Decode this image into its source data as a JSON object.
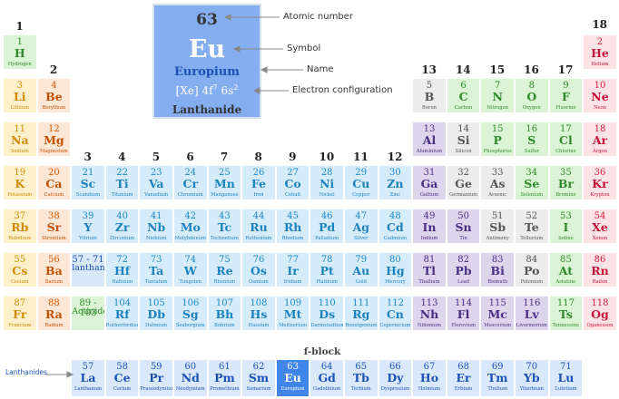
{
  "groups": [
    "1",
    "2",
    "3",
    "4",
    "5",
    "6",
    "7",
    "8",
    "9",
    "10",
    "11",
    "12",
    "13",
    "14",
    "15",
    "16",
    "17",
    "18"
  ],
  "legend": {
    "atomic_number": "63",
    "symbol": "Eu",
    "name": "Europium",
    "config_prefix": "[Xe] 4f",
    "config_sup1": "7",
    "config_mid": " 6s",
    "config_sup2": "2",
    "category": "Lanthanide",
    "callouts": [
      "Atomic number",
      "Symbol",
      "Name",
      "Electron configuration"
    ]
  },
  "fblock_title": "f-block",
  "lanthanides_label": "Lanthanides",
  "colors": {
    "alkali": {
      "bg": "#fff0cc",
      "num": "#c98b00",
      "sym": "#d28a00",
      "name": "#c98b00"
    },
    "alkaline": {
      "bg": "#fce7d6",
      "num": "#d55b00",
      "sym": "#c45000",
      "name": "#c45000"
    },
    "transition": {
      "bg": "#d7ecfb",
      "num": "#1988c4",
      "sym": "#1b82c0",
      "name": "#1b82c0"
    },
    "post": {
      "bg": "#ddd5ec",
      "num": "#4b2d86",
      "sym": "#4b2d86",
      "name": "#4b2d86"
    },
    "metalloid": {
      "bg": "#ececec",
      "num": "#555555",
      "sym": "#555555",
      "name": "#555555"
    },
    "nonmetal": {
      "bg": "#dbf4d5",
      "num": "#2f8a2a",
      "sym": "#2f8a2a",
      "name": "#2f8a2a"
    },
    "noble": {
      "bg": "#fde2e6",
      "num": "#d0223f",
      "sym": "#c4163a",
      "name": "#c4163a"
    },
    "lanthanide": {
      "bg": "#d9e8fb",
      "num": "#1a52b5",
      "sym": "#1a52b5",
      "name": "#1a52b5"
    },
    "highlight": {
      "bg": "#3f86e8",
      "num": "#ffffff",
      "sym": "#ffffff",
      "name": "#ffffff"
    }
  },
  "elements": [
    [
      "1",
      "H",
      "Hydrogen",
      1,
      1,
      "nonmetal"
    ],
    [
      "2",
      "He",
      "Helium",
      18,
      1,
      "noble"
    ],
    [
      "3",
      "Li",
      "Lithium",
      1,
      2,
      "alkali"
    ],
    [
      "4",
      "Be",
      "Beryllium",
      2,
      2,
      "alkaline"
    ],
    [
      "5",
      "B",
      "Boron",
      13,
      2,
      "metalloid"
    ],
    [
      "6",
      "C",
      "Carbon",
      14,
      2,
      "nonmetal"
    ],
    [
      "7",
      "N",
      "Nitrogen",
      15,
      2,
      "nonmetal"
    ],
    [
      "8",
      "O",
      "Oxygen",
      16,
      2,
      "nonmetal"
    ],
    [
      "9",
      "F",
      "Fluorine",
      17,
      2,
      "nonmetal"
    ],
    [
      "10",
      "Ne",
      "Neon",
      18,
      2,
      "noble"
    ],
    [
      "11",
      "Na",
      "Sodium",
      1,
      3,
      "alkali"
    ],
    [
      "12",
      "Mg",
      "Magnesium",
      2,
      3,
      "alkaline"
    ],
    [
      "13",
      "Al",
      "Aluminium",
      13,
      3,
      "post"
    ],
    [
      "14",
      "Si",
      "Silicon",
      14,
      3,
      "metalloid"
    ],
    [
      "15",
      "P",
      "Phosphorus",
      15,
      3,
      "nonmetal"
    ],
    [
      "16",
      "S",
      "Sulfur",
      16,
      3,
      "nonmetal"
    ],
    [
      "17",
      "Cl",
      "Chlorine",
      17,
      3,
      "nonmetal"
    ],
    [
      "18",
      "Ar",
      "Argon",
      18,
      3,
      "noble"
    ],
    [
      "19",
      "K",
      "Potassium",
      1,
      4,
      "alkali"
    ],
    [
      "20",
      "Ca",
      "Calcium",
      2,
      4,
      "alkaline"
    ],
    [
      "21",
      "Sc",
      "Scandium",
      3,
      4,
      "transition"
    ],
    [
      "22",
      "Ti",
      "Titanium",
      4,
      4,
      "transition"
    ],
    [
      "23",
      "Va",
      "Vanadium",
      5,
      4,
      "transition"
    ],
    [
      "24",
      "Cr",
      "Chromium",
      6,
      4,
      "transition"
    ],
    [
      "25",
      "Mn",
      "Manganese",
      7,
      4,
      "transition"
    ],
    [
      "26",
      "Fe",
      "Iron",
      8,
      4,
      "transition"
    ],
    [
      "27",
      "Co",
      "Cobalt",
      9,
      4,
      "transition"
    ],
    [
      "28",
      "Ni",
      "Nickel",
      10,
      4,
      "transition"
    ],
    [
      "29",
      "Cu",
      "Copper",
      11,
      4,
      "transition"
    ],
    [
      "30",
      "Zn",
      "Zinc",
      12,
      4,
      "transition"
    ],
    [
      "31",
      "Ga",
      "Gallium",
      13,
      4,
      "post"
    ],
    [
      "32",
      "Ge",
      "Germanium",
      14,
      4,
      "metalloid"
    ],
    [
      "33",
      "As",
      "Arsenic",
      15,
      4,
      "metalloid"
    ],
    [
      "34",
      "Se",
      "Selenium",
      16,
      4,
      "nonmetal"
    ],
    [
      "35",
      "Br",
      "Bromine",
      17,
      4,
      "nonmetal"
    ],
    [
      "36",
      "Kr",
      "Krypton",
      18,
      4,
      "noble"
    ],
    [
      "37",
      "Rb",
      "Rubidium",
      1,
      5,
      "alkali"
    ],
    [
      "38",
      "Sr",
      "Strontium",
      2,
      5,
      "alkaline"
    ],
    [
      "39",
      "Y",
      "Yttrium",
      3,
      5,
      "transition"
    ],
    [
      "40",
      "Zr",
      "Zirconium",
      4,
      5,
      "transition"
    ],
    [
      "41",
      "Nb",
      "Niobium",
      5,
      5,
      "transition"
    ],
    [
      "42",
      "Mo",
      "Molybdenum",
      6,
      5,
      "transition"
    ],
    [
      "43",
      "Tc",
      "Technetium",
      7,
      5,
      "transition"
    ],
    [
      "44",
      "Ru",
      "Ruthenium",
      8,
      5,
      "transition"
    ],
    [
      "45",
      "Rh",
      "Rhodium",
      9,
      5,
      "transition"
    ],
    [
      "46",
      "Pd",
      "Palladium",
      10,
      5,
      "transition"
    ],
    [
      "47",
      "Ag",
      "Silver",
      11,
      5,
      "transition"
    ],
    [
      "48",
      "Cd",
      "Cadmium",
      12,
      5,
      "transition"
    ],
    [
      "49",
      "In",
      "Indium",
      13,
      5,
      "post"
    ],
    [
      "50",
      "Sn",
      "Tin",
      14,
      5,
      "post"
    ],
    [
      "51",
      "Sb",
      "Antimony",
      15,
      5,
      "metalloid"
    ],
    [
      "52",
      "Te",
      "Tellurium",
      16,
      5,
      "metalloid"
    ],
    [
      "53",
      "I",
      "Iodine",
      17,
      5,
      "nonmetal"
    ],
    [
      "54",
      "Xe",
      "Xenon",
      18,
      5,
      "noble"
    ],
    [
      "55",
      "Cs",
      "Cesium",
      1,
      6,
      "alkali"
    ],
    [
      "56",
      "Ba",
      "Barium",
      2,
      6,
      "alkaline"
    ],
    [
      "57 - 71",
      "lanthanides",
      "",
      3,
      6,
      "lanthanide"
    ],
    [
      "72",
      "Hf",
      "Hafnium",
      4,
      6,
      "transition"
    ],
    [
      "73",
      "Ta",
      "Tantalum",
      5,
      6,
      "transition"
    ],
    [
      "74",
      "W",
      "Tungsten",
      6,
      6,
      "transition"
    ],
    [
      "75",
      "Re",
      "Rhenium",
      7,
      6,
      "transition"
    ],
    [
      "76",
      "Os",
      "Osmium",
      8,
      6,
      "transition"
    ],
    [
      "77",
      "Ir",
      "Iridium",
      9,
      6,
      "transition"
    ],
    [
      "78",
      "Pt",
      "Platinum",
      10,
      6,
      "transition"
    ],
    [
      "79",
      "Au",
      "Gold",
      11,
      6,
      "transition"
    ],
    [
      "80",
      "Hg",
      "Mercury",
      12,
      6,
      "transition"
    ],
    [
      "81",
      "Tl",
      "Thallium",
      13,
      6,
      "post"
    ],
    [
      "82",
      "Pb",
      "Lead",
      14,
      6,
      "post"
    ],
    [
      "83",
      "Bi",
      "Bismuth",
      15,
      6,
      "post"
    ],
    [
      "84",
      "Po",
      "Polonium",
      16,
      6,
      "metalloid"
    ],
    [
      "85",
      "At",
      "Astatine",
      17,
      6,
      "nonmetal"
    ],
    [
      "86",
      "Rn",
      "Radon",
      18,
      6,
      "noble"
    ],
    [
      "87",
      "Fr",
      "Francium",
      1,
      7,
      "alkali"
    ],
    [
      "88",
      "Ra",
      "Radium",
      2,
      7,
      "alkaline"
    ],
    [
      "89 - 103",
      "Actinides",
      "",
      3,
      7,
      "nonmetal"
    ],
    [
      "104",
      "Rf",
      "Rutherfordium",
      4,
      7,
      "transition"
    ],
    [
      "105",
      "Db",
      "Dubnium",
      5,
      7,
      "transition"
    ],
    [
      "106",
      "Sg",
      "Seaborgium",
      6,
      7,
      "transition"
    ],
    [
      "107",
      "Bh",
      "Bohrium",
      7,
      7,
      "transition"
    ],
    [
      "108",
      "Hs",
      "Hassium",
      8,
      7,
      "transition"
    ],
    [
      "109",
      "Mt",
      "Meitnerium",
      9,
      7,
      "transition"
    ],
    [
      "110",
      "Ds",
      "Darmstadtium",
      10,
      7,
      "transition"
    ],
    [
      "111",
      "Rg",
      "Roentgenium",
      11,
      7,
      "transition"
    ],
    [
      "112",
      "Cn",
      "Copernicium",
      12,
      7,
      "transition"
    ],
    [
      "113",
      "Nh",
      "Nihonium",
      13,
      7,
      "post"
    ],
    [
      "114",
      "Fl",
      "Flerovium",
      14,
      7,
      "post"
    ],
    [
      "115",
      "Mc",
      "Moscovium",
      15,
      7,
      "post"
    ],
    [
      "116",
      "Lv",
      "Livermorium",
      16,
      7,
      "post"
    ],
    [
      "117",
      "Ts",
      "Tennessine",
      17,
      7,
      "nonmetal"
    ],
    [
      "118",
      "Og",
      "Oganesson",
      18,
      7,
      "noble"
    ],
    [
      "57",
      "La",
      "Lanthanum",
      3,
      9,
      "lanthanide"
    ],
    [
      "58",
      "Ce",
      "Cerium",
      4,
      9,
      "lanthanide"
    ],
    [
      "59",
      "Pr",
      "Praseodymium",
      5,
      9,
      "lanthanide"
    ],
    [
      "60",
      "Nd",
      "Neodymium",
      6,
      9,
      "lanthanide"
    ],
    [
      "61",
      "Pm",
      "Promethium",
      7,
      9,
      "lanthanide"
    ],
    [
      "62",
      "Sm",
      "Samarium",
      8,
      9,
      "lanthanide"
    ],
    [
      "63",
      "Eu",
      "Europium",
      9,
      9,
      "highlight"
    ],
    [
      "64",
      "Gd",
      "Gadolinium",
      10,
      9,
      "lanthanide"
    ],
    [
      "65",
      "Tb",
      "Terbium",
      11,
      9,
      "lanthanide"
    ],
    [
      "66",
      "Dy",
      "Dysprosium",
      12,
      9,
      "lanthanide"
    ],
    [
      "67",
      "Ho",
      "Holmium",
      13,
      9,
      "lanthanide"
    ],
    [
      "68",
      "Er",
      "Erbium",
      14,
      9,
      "lanthanide"
    ],
    [
      "69",
      "Tm",
      "Thulium",
      15,
      9,
      "lanthanide"
    ],
    [
      "70",
      "Yb",
      "Ytterbium",
      16,
      9,
      "lanthanide"
    ],
    [
      "71",
      "Lu",
      "Lutetium",
      17,
      9,
      "lanthanide"
    ]
  ]
}
